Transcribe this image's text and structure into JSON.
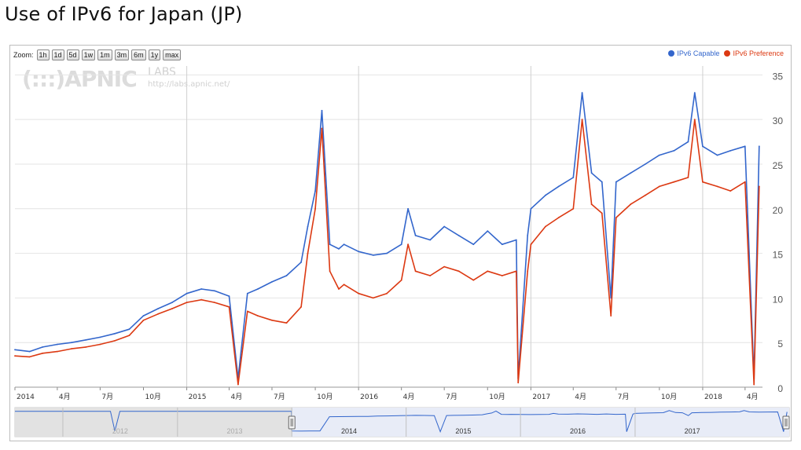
{
  "page": {
    "title": "Use of IPv6 for Japan (JP)"
  },
  "toolbar": {
    "zoom_label": "Zoom:",
    "zoom_buttons": [
      "1h",
      "1d",
      "5d",
      "1w",
      "1m",
      "3m",
      "6m",
      "1y",
      "max"
    ]
  },
  "watermark": {
    "logo": "(:::)APNIC",
    "labs": "LABS",
    "url": "http://labs.apnic.net/"
  },
  "legend": {
    "items": [
      "IPv6 Capable",
      "IPv6 Preference"
    ]
  },
  "colors": {
    "capable": "#3366cc",
    "preference": "#dc3912",
    "navigator_line": "#3366cc",
    "navigator_fill": "#e8ecf7",
    "navigator_shade": "#e2e2e2"
  },
  "navigator": {
    "year_labels": [
      "2012",
      "2013",
      "2014",
      "2015",
      "2016",
      "2017"
    ]
  },
  "chart_data": {
    "type": "line",
    "title": "Use of IPv6 for Japan (JP)",
    "xlabel": "",
    "ylabel": "",
    "ylim": [
      0,
      36
    ],
    "yticks": [
      0,
      5,
      10,
      15,
      20,
      25,
      30,
      35
    ],
    "xticks": [
      "2014",
      "4月",
      "7月",
      "10月",
      "2015",
      "4月",
      "7月",
      "10月",
      "2016",
      "4月",
      "7月",
      "10月",
      "2017",
      "4月",
      "7月",
      "10月",
      "2018",
      "4月"
    ],
    "grid": true,
    "legend_position": "top-right",
    "series": [
      {
        "name": "IPv6 Capable",
        "x": [
          "2014-01-01",
          "2014-02-01",
          "2014-03-01",
          "2014-04-01",
          "2014-05-01",
          "2014-06-01",
          "2014-07-01",
          "2014-08-01",
          "2014-09-01",
          "2014-10-01",
          "2014-11-01",
          "2014-12-01",
          "2015-01-01",
          "2015-02-01",
          "2015-03-01",
          "2015-04-01",
          "2015-04-20",
          "2015-05-10",
          "2015-06-01",
          "2015-07-01",
          "2015-08-01",
          "2015-09-01",
          "2015-09-15",
          "2015-10-01",
          "2015-10-15",
          "2015-11-01",
          "2015-11-20",
          "2015-12-01",
          "2016-01-01",
          "2016-02-01",
          "2016-03-01",
          "2016-04-01",
          "2016-04-15",
          "2016-05-01",
          "2016-06-01",
          "2016-07-01",
          "2016-08-01",
          "2016-09-01",
          "2016-10-01",
          "2016-11-01",
          "2016-12-01",
          "2016-12-05",
          "2016-12-25",
          "2017-01-01",
          "2017-02-01",
          "2017-03-01",
          "2017-04-01",
          "2017-04-20",
          "2017-05-10",
          "2017-06-01",
          "2017-06-20",
          "2017-07-01",
          "2017-08-01",
          "2017-09-01",
          "2017-10-01",
          "2017-11-01",
          "2017-12-01",
          "2017-12-15",
          "2018-01-01",
          "2018-02-01",
          "2018-03-01",
          "2018-04-01",
          "2018-04-20",
          "2018-05-01"
        ],
        "y": [
          4.2,
          4.0,
          4.5,
          4.8,
          5.0,
          5.3,
          5.6,
          6.0,
          6.5,
          8.0,
          8.8,
          9.5,
          10.5,
          11.0,
          10.8,
          10.2,
          1.0,
          10.5,
          11.0,
          11.8,
          12.5,
          14.0,
          18.0,
          22.0,
          31.0,
          16.0,
          15.5,
          16.0,
          15.2,
          14.8,
          15.0,
          16.0,
          20.0,
          17.0,
          16.5,
          18.0,
          17.0,
          16.0,
          17.5,
          16.0,
          16.5,
          1.0,
          17.0,
          20.0,
          21.5,
          22.5,
          23.5,
          33.0,
          24.0,
          23.0,
          10.0,
          23.0,
          24.0,
          25.0,
          26.0,
          26.5,
          27.5,
          33.0,
          27.0,
          26.0,
          26.5,
          27.0,
          1.0,
          27.0
        ]
      },
      {
        "name": "IPv6 Preference",
        "x": [
          "2014-01-01",
          "2014-02-01",
          "2014-03-01",
          "2014-04-01",
          "2014-05-01",
          "2014-06-01",
          "2014-07-01",
          "2014-08-01",
          "2014-09-01",
          "2014-10-01",
          "2014-11-01",
          "2014-12-01",
          "2015-01-01",
          "2015-02-01",
          "2015-03-01",
          "2015-04-01",
          "2015-04-20",
          "2015-05-10",
          "2015-06-01",
          "2015-07-01",
          "2015-08-01",
          "2015-09-01",
          "2015-09-15",
          "2015-10-01",
          "2015-10-15",
          "2015-11-01",
          "2015-11-20",
          "2015-12-01",
          "2016-01-01",
          "2016-02-01",
          "2016-03-01",
          "2016-04-01",
          "2016-04-15",
          "2016-05-01",
          "2016-06-01",
          "2016-07-01",
          "2016-08-01",
          "2016-09-01",
          "2016-10-01",
          "2016-11-01",
          "2016-12-01",
          "2016-12-05",
          "2016-12-25",
          "2017-01-01",
          "2017-02-01",
          "2017-03-01",
          "2017-04-01",
          "2017-04-20",
          "2017-05-10",
          "2017-06-01",
          "2017-06-20",
          "2017-07-01",
          "2017-08-01",
          "2017-09-01",
          "2017-10-01",
          "2017-11-01",
          "2017-12-01",
          "2017-12-15",
          "2018-01-01",
          "2018-02-01",
          "2018-03-01",
          "2018-04-01",
          "2018-04-20",
          "2018-05-01"
        ],
        "y": [
          3.5,
          3.4,
          3.8,
          4.0,
          4.3,
          4.5,
          4.8,
          5.2,
          5.8,
          7.5,
          8.2,
          8.8,
          9.5,
          9.8,
          9.5,
          9.0,
          0.3,
          8.5,
          8.0,
          7.5,
          7.2,
          9.0,
          15.0,
          20.0,
          29.0,
          13.0,
          11.0,
          11.5,
          10.5,
          10.0,
          10.5,
          12.0,
          16.0,
          13.0,
          12.5,
          13.5,
          13.0,
          12.0,
          13.0,
          12.5,
          13.0,
          0.5,
          13.0,
          16.0,
          18.0,
          19.0,
          20.0,
          30.0,
          20.5,
          19.5,
          8.0,
          19.0,
          20.5,
          21.5,
          22.5,
          23.0,
          23.5,
          30.0,
          23.0,
          22.5,
          22.0,
          23.0,
          0.3,
          22.5
        ]
      }
    ]
  }
}
